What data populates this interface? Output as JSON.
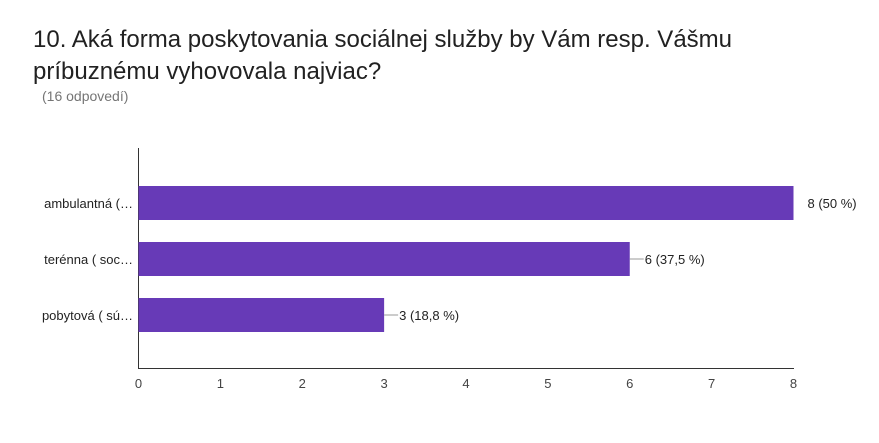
{
  "header": {
    "title": "10. Aká forma poskytovania sociálnej služby by Vám resp. Vášmu príbuznému vyhovovala najviac?",
    "response_count": "(16 odpovedí)"
  },
  "chart_data": {
    "type": "bar",
    "orientation": "horizontal",
    "categories": [
      "ambulantná (…",
      "terénna ( soc…",
      "pobytová ( sú…"
    ],
    "values": [
      8,
      6,
      3
    ],
    "data_labels": [
      "8 (50 %)",
      "6 (37,5 %)",
      "3 (18,8 %)"
    ],
    "xlim": [
      0,
      8
    ],
    "xticks": [
      "0",
      "1",
      "2",
      "3",
      "4",
      "5",
      "6",
      "7",
      "8"
    ],
    "bar_color": "#673ab7",
    "grid": false
  }
}
